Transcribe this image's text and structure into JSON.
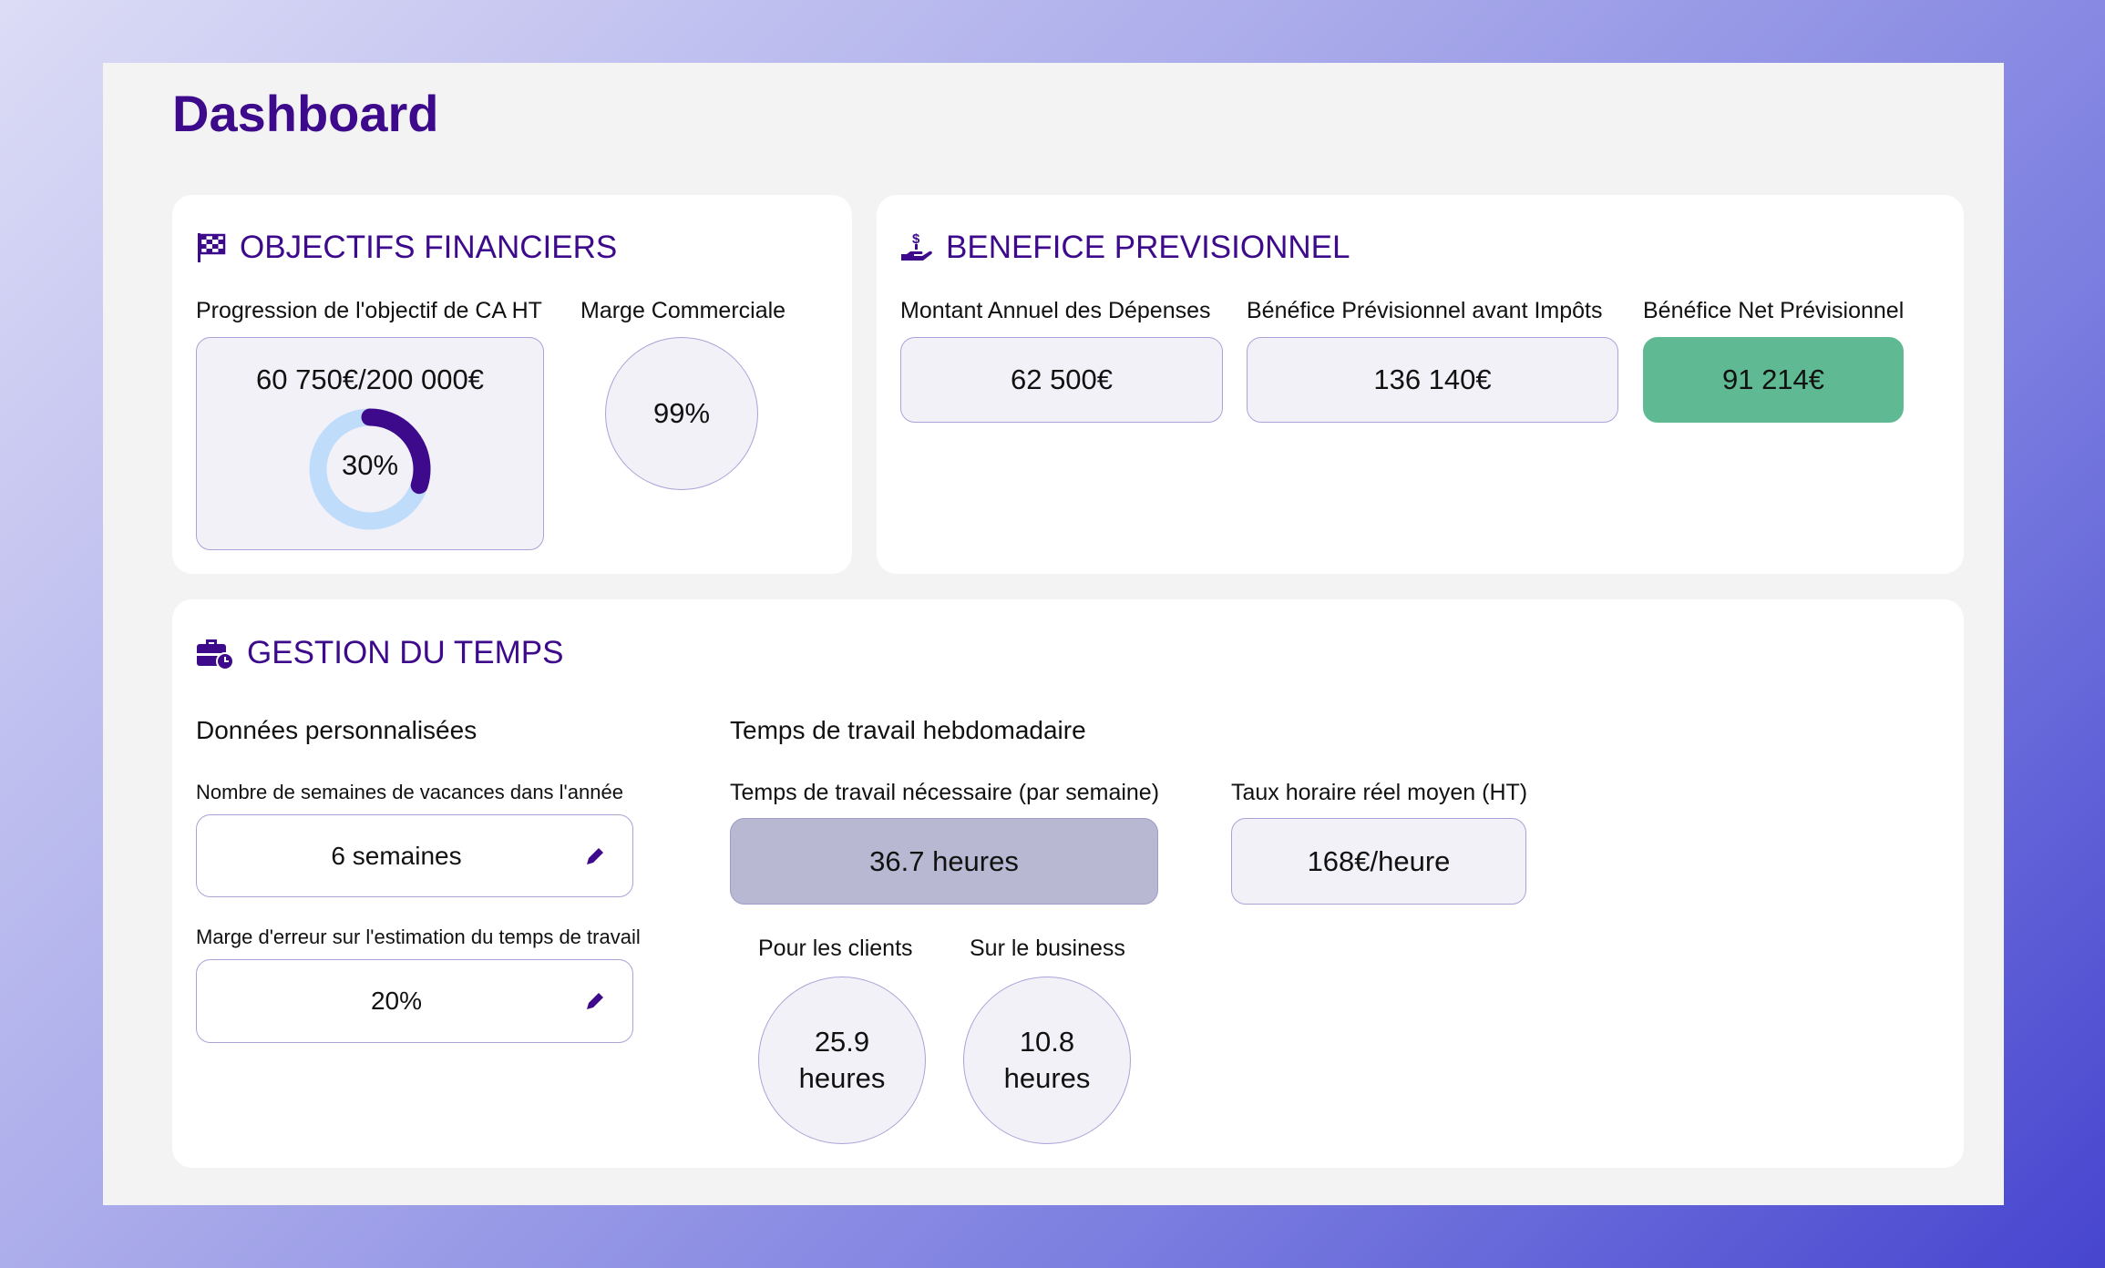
{
  "page": {
    "title": "Dashboard"
  },
  "colors": {
    "accent": "#3d0a8c",
    "positive": "#5fba93",
    "highlight": "#b8b8d2",
    "ring_track": "#c0dcfb"
  },
  "objectifs": {
    "icon": "checkered-flag-icon",
    "heading": "OBJECTIFS FINANCIERS",
    "progress_label": "Progression de l'objectif de CA HT",
    "progress_amount": "60 750€/200 000€",
    "progress_percent_text": "30%",
    "progress_fraction": 0.3,
    "marge_label": "Marge Commerciale",
    "marge_value": "99%"
  },
  "benefice": {
    "icon": "hand-dollar-icon",
    "heading": "BENEFICE PREVISIONNEL",
    "items": [
      {
        "label": "Montant Annuel des Dépenses",
        "value": "62 500€"
      },
      {
        "label": "Bénéfice Prévisionnel avant Impôts",
        "value": "136 140€"
      },
      {
        "label": "Bénéfice Net Prévisionnel",
        "value": "91 214€"
      }
    ]
  },
  "temps": {
    "icon": "briefcase-clock-icon",
    "heading": "GESTION DU TEMPS",
    "perso": {
      "title": "Données personnalisées",
      "vacances_label": "Nombre de semaines de vacances dans l'année",
      "vacances_value": "6 semaines",
      "marge_label": "Marge d'erreur sur l'estimation du temps de travail",
      "marge_value": "20%"
    },
    "hebdo": {
      "title": "Temps de travail hebdomadaire",
      "necessaire_label": "Temps de travail nécessaire (par semaine)",
      "necessaire_value": "36.7 heures",
      "taux_label": "Taux horaire réel moyen (HT)",
      "taux_value": "168€/heure",
      "clients_label": "Pour les clients",
      "clients_value": "25.9",
      "clients_unit": "heures",
      "business_label": "Sur le business",
      "business_value": "10.8",
      "business_unit": "heures"
    }
  }
}
